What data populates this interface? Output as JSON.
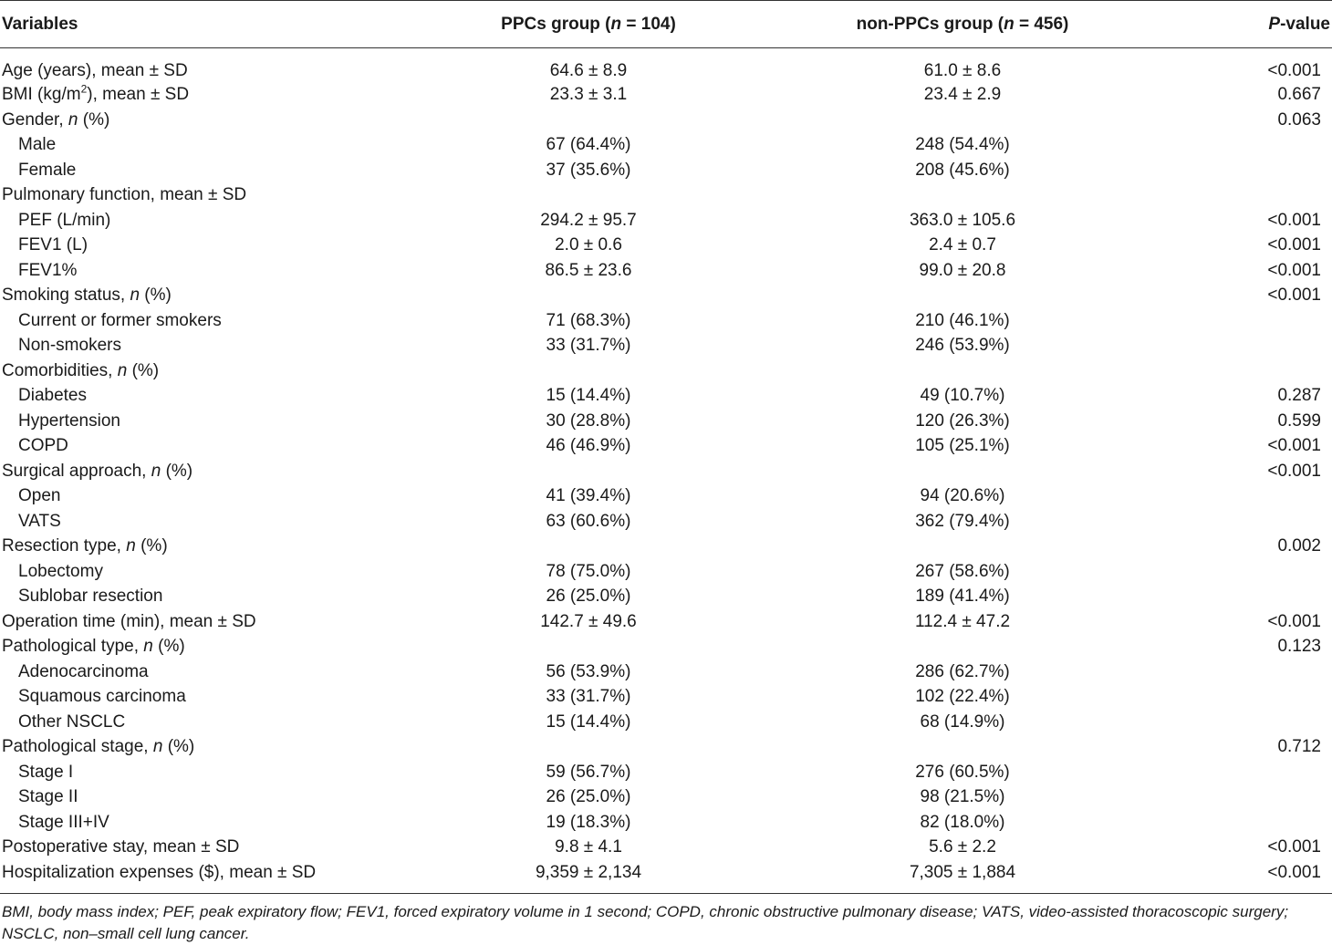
{
  "table": {
    "headers": {
      "variables": "Variables",
      "ppcs_prefix": "PPCs group (",
      "ppcs_n": "n",
      "ppcs_suffix": " = 104)",
      "non_prefix": "non-PPCs group (",
      "non_n": "n",
      "non_suffix": " = 456)",
      "p_italic": "P",
      "p_suffix": "-value"
    },
    "rows": [
      {
        "label": "Age (years), mean ± SD",
        "ppcs": "64.6 ± 8.9",
        "non": "61.0 ± 8.6",
        "p": "<0.001",
        "sub": false
      },
      {
        "label_pre": "BMI (kg/m",
        "label_sup": "2",
        "label_post": "), mean ± SD",
        "ppcs": "23.3 ± 3.1",
        "non": "23.4 ± 2.9",
        "p": "0.667",
        "sub": false,
        "bmi": true
      },
      {
        "label_pre": "Gender, ",
        "label_n": "n",
        "label_post": " (%)",
        "ppcs": "",
        "non": "",
        "p": "0.063",
        "sub": false,
        "nlabel": true
      },
      {
        "label": "Male",
        "ppcs": "67 (64.4%)",
        "non": "248 (54.4%)",
        "p": "",
        "sub": true
      },
      {
        "label": "Female",
        "ppcs": "37 (35.6%)",
        "non": "208 (45.6%)",
        "p": "",
        "sub": true
      },
      {
        "label": "Pulmonary function, mean ± SD",
        "ppcs": "",
        "non": "",
        "p": "",
        "sub": false
      },
      {
        "label": "PEF (L/min)",
        "ppcs": "294.2 ± 95.7",
        "non": "363.0 ± 105.6",
        "p": "<0.001",
        "sub": true
      },
      {
        "label": "FEV1 (L)",
        "ppcs": "2.0 ± 0.6",
        "non": "2.4 ± 0.7",
        "p": "<0.001",
        "sub": true
      },
      {
        "label": "FEV1%",
        "ppcs": "86.5 ± 23.6",
        "non": "99.0 ± 20.8",
        "p": "<0.001",
        "sub": true
      },
      {
        "label_pre": "Smoking status, ",
        "label_n": "n",
        "label_post": " (%)",
        "ppcs": "",
        "non": "",
        "p": "<0.001",
        "sub": false,
        "nlabel": true
      },
      {
        "label": "Current or former smokers",
        "ppcs": "71 (68.3%)",
        "non": "210 (46.1%)",
        "p": "",
        "sub": true
      },
      {
        "label": "Non-smokers",
        "ppcs": "33 (31.7%)",
        "non": "246 (53.9%)",
        "p": "",
        "sub": true
      },
      {
        "label_pre": "Comorbidities, ",
        "label_n": "n",
        "label_post": " (%)",
        "ppcs": "",
        "non": "",
        "p": "",
        "sub": false,
        "nlabel": true
      },
      {
        "label": "Diabetes",
        "ppcs": "15 (14.4%)",
        "non": "49 (10.7%)",
        "p": "0.287",
        "sub": true
      },
      {
        "label": "Hypertension",
        "ppcs": "30 (28.8%)",
        "non": "120 (26.3%)",
        "p": "0.599",
        "sub": true
      },
      {
        "label": "COPD",
        "ppcs": "46 (46.9%)",
        "non": "105 (25.1%)",
        "p": "<0.001",
        "sub": true
      },
      {
        "label_pre": "Surgical approach, ",
        "label_n": "n",
        "label_post": " (%)",
        "ppcs": "",
        "non": "",
        "p": "<0.001",
        "sub": false,
        "nlabel": true
      },
      {
        "label": "Open",
        "ppcs": "41 (39.4%)",
        "non": "94 (20.6%)",
        "p": "",
        "sub": true
      },
      {
        "label": "VATS",
        "ppcs": "63 (60.6%)",
        "non": "362 (79.4%)",
        "p": "",
        "sub": true
      },
      {
        "label_pre": "Resection type, ",
        "label_n": "n",
        "label_post": " (%)",
        "ppcs": "",
        "non": "",
        "p": "0.002",
        "sub": false,
        "nlabel": true
      },
      {
        "label": "Lobectomy",
        "ppcs": "78 (75.0%)",
        "non": "267 (58.6%)",
        "p": "",
        "sub": true
      },
      {
        "label": "Sublobar resection",
        "ppcs": "26 (25.0%)",
        "non": "189 (41.4%)",
        "p": "",
        "sub": true
      },
      {
        "label": "Operation time (min), mean ± SD",
        "ppcs": "142.7 ± 49.6",
        "non": "112.4 ± 47.2",
        "p": "<0.001",
        "sub": false
      },
      {
        "label_pre": "Pathological type, ",
        "label_n": "n",
        "label_post": " (%)",
        "ppcs": "",
        "non": "",
        "p": "0.123",
        "sub": false,
        "nlabel": true
      },
      {
        "label": "Adenocarcinoma",
        "ppcs": "56 (53.9%)",
        "non": "286 (62.7%)",
        "p": "",
        "sub": true
      },
      {
        "label": "Squamous carcinoma",
        "ppcs": "33 (31.7%)",
        "non": "102 (22.4%)",
        "p": "",
        "sub": true
      },
      {
        "label": "Other NSCLC",
        "ppcs": "15 (14.4%)",
        "non": "68 (14.9%)",
        "p": "",
        "sub": true
      },
      {
        "label_pre": "Pathological stage, ",
        "label_n": "n",
        "label_post": " (%)",
        "ppcs": "",
        "non": "",
        "p": "0.712",
        "sub": false,
        "nlabel": true
      },
      {
        "label": "Stage I",
        "ppcs": "59 (56.7%)",
        "non": "276 (60.5%)",
        "p": "",
        "sub": true
      },
      {
        "label": "Stage II",
        "ppcs": "26 (25.0%)",
        "non": "98 (21.5%)",
        "p": "",
        "sub": true
      },
      {
        "label": "Stage III+IV",
        "ppcs": "19 (18.3%)",
        "non": "82 (18.0%)",
        "p": "",
        "sub": true
      },
      {
        "label": "Postoperative stay, mean ± SD",
        "ppcs": "9.8 ± 4.1",
        "non": "5.6 ± 2.2",
        "p": "<0.001",
        "sub": false
      },
      {
        "label": "Hospitalization expenses ($), mean ± SD",
        "ppcs": "9,359 ± 2,134",
        "non": "7,305 ± 1,884",
        "p": "<0.001",
        "sub": false
      }
    ]
  },
  "footnote": "BMI, body mass index; PEF, peak expiratory flow; FEV1, forced expiratory volume in 1 second; COPD, chronic obstructive pulmonary disease; VATS, video-assisted thoracoscopic surgery; NSCLC, non–small cell lung cancer."
}
